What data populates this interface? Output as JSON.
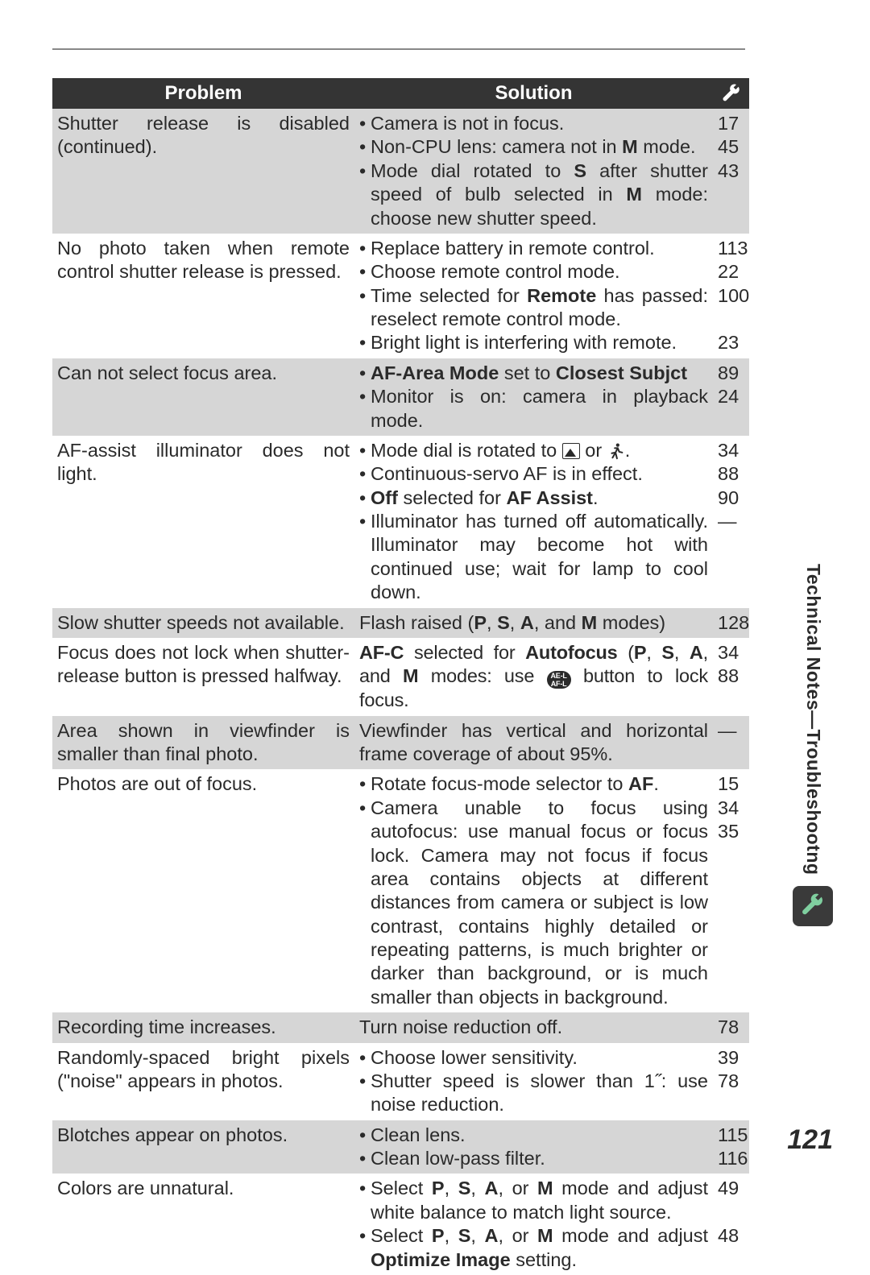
{
  "page_number": "121",
  "side_tab": "Technical Notes—Troubleshootng",
  "header": {
    "problem": "Problem",
    "solution": "Solution"
  },
  "header_icon_name": "wrench-icon",
  "rows": [
    {
      "shade": true,
      "problem": "Shutter release is disabled (continued).",
      "solution_html": "<ul class='bullet-list'><li>Camera is not in focus.</li><li>Non-CPU lens: camera not in <b>M</b> mode.</li><li>Mode dial rotated to <b>S</b> after shutter speed of bulb selected in <b>M</b> mode: choose new shutter speed.</li></ul>",
      "pages": "17\n45\n43"
    },
    {
      "shade": false,
      "problem": "No photo taken when remote control shutter release is pressed.",
      "solution_html": "<ul class='bullet-list'><li>Replace battery in remote control.</li><li>Choose remote control mode.</li><li>Time selected for <b>Remote</b> has passed: reselect remote control mode.</li><li>Bright light is interfering with remote.</li></ul>",
      "pages": "113\n22\n100\n\n23"
    },
    {
      "shade": true,
      "problem": "Can not select focus area.",
      "solution_html": "<ul class='bullet-list'><li><b>AF-Area Mode</b> set to <b>Closest Subjct</b></li><li>Monitor is on: camera in playback mode.</li></ul>",
      "pages": "89\n24"
    },
    {
      "shade": false,
      "problem": "AF-assist illuminator does not light.",
      "solution_html": "<ul class='bullet-list'><li>Mode dial is rotated to <span class='inline-icon mountain' data-name='landscape-icon' data-interactable='false'></span> or <svg class='runner' data-name='sports-icon' data-interactable='false' viewBox='0 0 24 24'><circle cx='14' cy='4' r='2.3' fill='#2a2a2a'/><path d='M10 8 L14 8 L16 13 L20 14 M14 8 L11 14 L6 15 M11 14 L13 22 M11 14 L7 21' stroke='#2a2a2a' stroke-width='2.2' fill='none' stroke-linecap='round'/></svg>.</li><li>Continuous-servo AF is in effect.</li><li><b>Off</b> selected for <b>AF Assist</b>.</li><li>Illuminator has turned off automatically. Illuminator may become hot with continued use; wait for lamp to cool down.</li></ul>",
      "pages": "34\n88\n90\n—"
    },
    {
      "shade": true,
      "problem": "Slow shutter speeds not available.",
      "solution_html": "Flash raised (<b>P</b>, <b>S</b>, <b>A</b>, and <b>M</b> modes)",
      "pages": "128"
    },
    {
      "shade": false,
      "problem": "Focus does not lock when shutter-release button is pressed halfway.",
      "solution_html": "<span class='fine'><b>AF-C</b> selected for <b>Autofocus</b> (<b>P</b>, <b>S</b>, <b>A</b>, and <b>M</b> modes: use <span class='ael-btn' data-name='ae-l-af-l-button-icon' data-interactable='false'>AE-L<br>AF-L</span> button to lock focus.</span>",
      "pages": "34\n88"
    },
    {
      "shade": true,
      "problem": "Area shown in viewfinder is smaller than final photo.",
      "solution_html": "Viewfinder has vertical and horizontal frame coverage of about 95%.",
      "pages": "—"
    },
    {
      "shade": false,
      "problem": "Photos are out of focus.",
      "solution_html": "<ul class='bullet-list'><li>Rotate focus-mode selector to <b>AF</b>.</li><li>Camera unable to focus using autofocus: use manual focus or focus lock. Camera may not focus if focus area contains objects at different distances from camera or subject is low contrast, contains highly detailed or repeating patterns, is much brighter or darker than background, or is much smaller than objects in background.</li></ul>",
      "pages": "15\n34\n35"
    },
    {
      "shade": true,
      "problem": "Recording time increases.",
      "solution_html": "Turn noise reduction off.",
      "pages": "78"
    },
    {
      "shade": false,
      "problem": "Randomly-spaced bright pixels (\"noise\" appears in photos.",
      "solution_html": "<ul class='bullet-list'><li>Choose lower sensitivity.</li><li>Shutter speed is slower than 1˝: use noise reduction.</li></ul>",
      "pages": "39\n78"
    },
    {
      "shade": true,
      "problem": "Blotches appear on photos.",
      "solution_html": "<ul class='bullet-list'><li>Clean lens.</li><li>Clean low-pass filter.</li></ul>",
      "pages": "115\n116"
    },
    {
      "shade": false,
      "problem": "Colors are unnatural.",
      "solution_html": "<ul class='bullet-list'><li>Select <b>P</b>, <b>S</b>, <b>A</b>, or <b>M</b> mode and adjust white balance to match light source.</li><li>Select <b>P</b>, <b>S</b>, <b>A</b>, or <b>M</b> mode and adjust <b>Optimize Image</b> setting.</li></ul>",
      "pages": "49\n\n48"
    }
  ],
  "colors": {
    "header_bg": "#343434",
    "header_fg": "#ffffff",
    "shade_bg": "#d6d6d6",
    "text": "#2a2a2a"
  }
}
